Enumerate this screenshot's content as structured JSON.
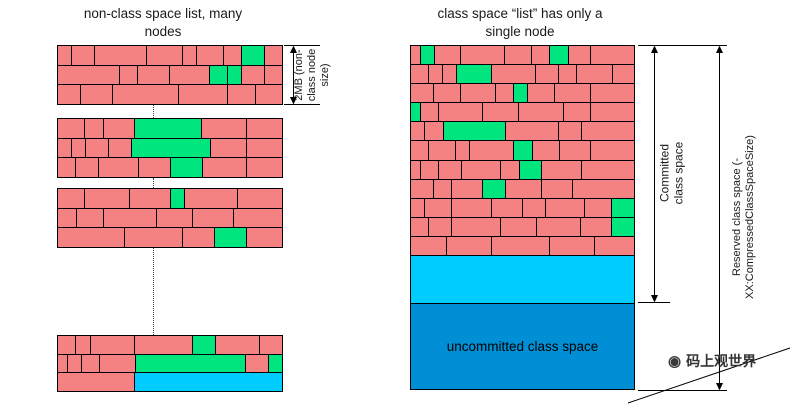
{
  "titles": {
    "left": "non-class space list, many nodes",
    "right": "class space “list” has only a single node"
  },
  "annotations": {
    "node_size_label": "2MB (non-class node size)",
    "committed_label": "Committed class space",
    "reserved_label": "Reserved class space (-XX:CompressedClassSpaceSize)"
  },
  "right_node": {
    "uncommitted_label": "uncommitted class space",
    "rows": [
      [
        [
          2,
          "p"
        ],
        [
          3,
          "g"
        ],
        [
          6,
          "p"
        ],
        [
          10,
          "p"
        ],
        [
          6,
          "p"
        ],
        [
          4,
          "p"
        ],
        [
          4,
          "g"
        ],
        [
          5,
          "p"
        ],
        [
          10,
          "p"
        ]
      ],
      [
        [
          4,
          "p"
        ],
        [
          3,
          "p"
        ],
        [
          3,
          "p"
        ],
        [
          8,
          "g"
        ],
        [
          10,
          "p"
        ],
        [
          5,
          "p"
        ],
        [
          4,
          "p"
        ],
        [
          8,
          "p"
        ],
        [
          5,
          "p"
        ]
      ],
      [
        [
          5,
          "p"
        ],
        [
          6,
          "p"
        ],
        [
          8,
          "p"
        ],
        [
          4,
          "p"
        ],
        [
          3,
          "g"
        ],
        [
          6,
          "p"
        ],
        [
          8,
          "p"
        ],
        [
          10,
          "p"
        ]
      ],
      [
        [
          2,
          "g"
        ],
        [
          4,
          "p"
        ],
        [
          10,
          "p"
        ],
        [
          8,
          "p"
        ],
        [
          10,
          "p"
        ],
        [
          6,
          "p"
        ],
        [
          10,
          "p"
        ]
      ],
      [
        [
          3,
          "p"
        ],
        [
          4,
          "p"
        ],
        [
          14,
          "g"
        ],
        [
          12,
          "p"
        ],
        [
          5,
          "p"
        ],
        [
          12,
          "p"
        ]
      ],
      [
        [
          4,
          "p"
        ],
        [
          6,
          "p"
        ],
        [
          3,
          "p"
        ],
        [
          10,
          "p"
        ],
        [
          4,
          "g"
        ],
        [
          6,
          "p"
        ],
        [
          7,
          "p"
        ],
        [
          10,
          "p"
        ]
      ],
      [
        [
          2,
          "p"
        ],
        [
          4,
          "p"
        ],
        [
          5,
          "p"
        ],
        [
          9,
          "p"
        ],
        [
          4,
          "p"
        ],
        [
          5,
          "g"
        ],
        [
          9,
          "p"
        ],
        [
          12,
          "p"
        ]
      ],
      [
        [
          5,
          "p"
        ],
        [
          4,
          "p"
        ],
        [
          7,
          "p"
        ],
        [
          5,
          "g"
        ],
        [
          8,
          "p"
        ],
        [
          7,
          "p"
        ],
        [
          14,
          "p"
        ]
      ],
      [
        [
          3,
          "p"
        ],
        [
          6,
          "p"
        ],
        [
          9,
          "p"
        ],
        [
          7,
          "p"
        ],
        [
          5,
          "p"
        ],
        [
          9,
          "p"
        ],
        [
          6,
          "p"
        ],
        [
          5,
          "g"
        ]
      ],
      [
        [
          4,
          "p"
        ],
        [
          5,
          "p"
        ],
        [
          11,
          "p"
        ],
        [
          8,
          "p"
        ],
        [
          10,
          "p"
        ],
        [
          7,
          "p"
        ],
        [
          5,
          "g"
        ]
      ],
      [
        [
          8,
          "p"
        ],
        [
          10,
          "p"
        ],
        [
          13,
          "p"
        ],
        [
          10,
          "p"
        ],
        [
          9,
          "p"
        ]
      ]
    ]
  },
  "left_nodes": [
    {
      "rows": [
        [
          [
            3,
            "p"
          ],
          [
            5,
            "p"
          ],
          [
            12,
            "p"
          ],
          [
            8,
            "p"
          ],
          [
            3,
            "p"
          ],
          [
            6,
            "p"
          ],
          [
            4,
            "p"
          ],
          [
            5,
            "g"
          ],
          [
            4,
            "p"
          ]
        ],
        [
          [
            14,
            "p"
          ],
          [
            4,
            "p"
          ],
          [
            7,
            "p"
          ],
          [
            9,
            "p"
          ],
          [
            4,
            "g"
          ],
          [
            3,
            "g"
          ],
          [
            5,
            "p"
          ],
          [
            4,
            "p"
          ]
        ],
        [
          [
            5,
            "p"
          ],
          [
            7,
            "p"
          ],
          [
            15,
            "p"
          ],
          [
            11,
            "p"
          ],
          [
            6,
            "p"
          ],
          [
            6,
            "p"
          ]
        ]
      ]
    },
    {
      "rows": [
        [
          [
            6,
            "p"
          ],
          [
            4,
            "p"
          ],
          [
            7,
            "p"
          ],
          [
            15,
            "g"
          ],
          [
            10,
            "p"
          ],
          [
            8,
            "p"
          ]
        ],
        [
          [
            3,
            "p"
          ],
          [
            3,
            "p"
          ],
          [
            5,
            "p"
          ],
          [
            5,
            "p"
          ],
          [
            18,
            "g"
          ],
          [
            8,
            "p"
          ],
          [
            8,
            "p"
          ]
        ],
        [
          [
            4,
            "p"
          ],
          [
            5,
            "p"
          ],
          [
            9,
            "p"
          ],
          [
            7,
            "p"
          ],
          [
            7,
            "g"
          ],
          [
            10,
            "p"
          ],
          [
            8,
            "p"
          ]
        ]
      ]
    },
    {
      "rows": [
        [
          [
            6,
            "p"
          ],
          [
            10,
            "p"
          ],
          [
            9,
            "p"
          ],
          [
            3,
            "g"
          ],
          [
            12,
            "p"
          ],
          [
            10,
            "p"
          ]
        ],
        [
          [
            4,
            "p"
          ],
          [
            6,
            "p"
          ],
          [
            12,
            "p"
          ],
          [
            8,
            "p"
          ],
          [
            9,
            "p"
          ],
          [
            11,
            "p"
          ]
        ],
        [
          [
            15,
            "p"
          ],
          [
            13,
            "p"
          ],
          [
            7,
            "p"
          ],
          [
            7,
            "g"
          ],
          [
            8,
            "p"
          ]
        ]
      ]
    },
    {
      "rows": [
        [
          [
            4,
            "p"
          ],
          [
            3,
            "p"
          ],
          [
            10,
            "p"
          ],
          [
            13,
            "p"
          ],
          [
            5,
            "g"
          ],
          [
            10,
            "p"
          ],
          [
            5,
            "p"
          ]
        ],
        [
          [
            2,
            "p"
          ],
          [
            3,
            "p"
          ],
          [
            4,
            "p"
          ],
          [
            8,
            "p"
          ],
          [
            25,
            "g"
          ],
          [
            5,
            "p"
          ],
          [
            3,
            "g"
          ]
        ],
        [
          [
            17,
            "p"
          ],
          [
            33,
            "c"
          ]
        ]
      ]
    }
  ],
  "colors": {
    "pink": "#f58282",
    "green": "#00e57d",
    "cyan": "#00ccff",
    "blue": "#008fd4",
    "border": "#000000"
  },
  "watermark": {
    "text": "码上观世界"
  },
  "icons": {
    "seal": "◉"
  }
}
